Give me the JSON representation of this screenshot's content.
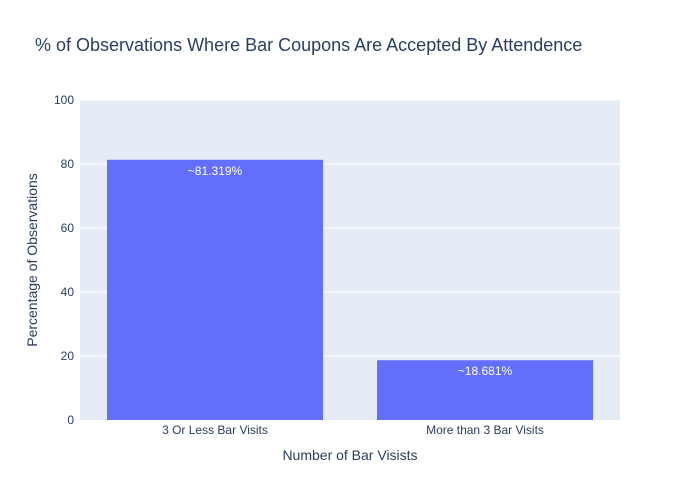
{
  "chart_data": {
    "type": "bar",
    "title": "% of Observations Where Bar Coupons Are Accepted By Attendence",
    "xlabel": "Number of Bar Visists",
    "ylabel": "Percentage of Observations",
    "categories": [
      "3 Or Less Bar Visits",
      "More than 3 Bar Visits"
    ],
    "values": [
      81.319,
      18.681
    ],
    "data_labels": [
      "~81.319%",
      "~18.681%"
    ],
    "ylim": [
      0,
      100
    ],
    "yticks": [
      0,
      20,
      40,
      60,
      80,
      100
    ],
    "grid": true,
    "legend": "none",
    "colors": {
      "bar": "#636efa",
      "plot_background": "#e5ecf6",
      "grid": "#ffffff",
      "text": "#2a3f5f",
      "data_label": "#ffffff"
    }
  }
}
